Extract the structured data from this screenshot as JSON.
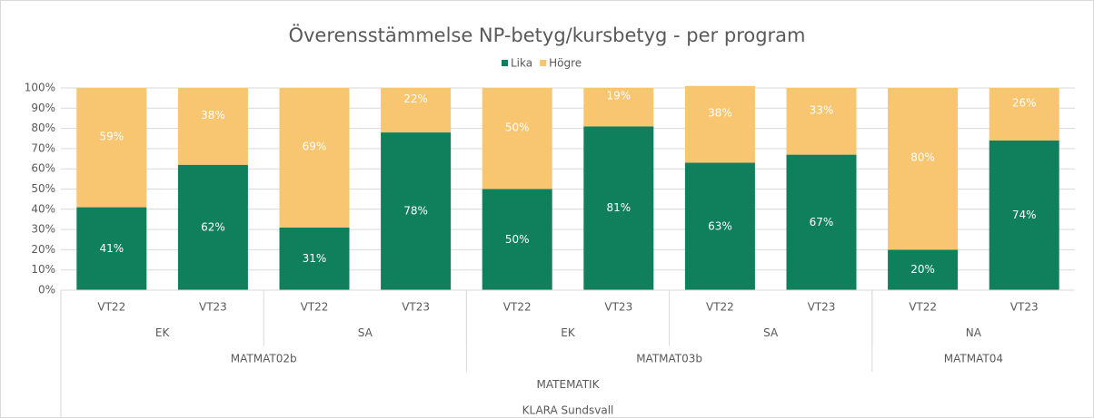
{
  "chart_data": {
    "type": "stacked_bar",
    "title": "Överensstämmelse NP-betyg/kursbetyg - per program",
    "categories": [
      "VT22",
      "VT23",
      "VT22",
      "VT23",
      "VT22",
      "VT23",
      "VT22",
      "VT23",
      "VT22",
      "VT23"
    ],
    "category_groups": [
      {
        "labels": [
          "EK",
          "SA",
          "EK",
          "SA",
          "NA"
        ],
        "spans": [
          2,
          2,
          2,
          2,
          2
        ]
      },
      {
        "labels": [
          "MATMAT02b",
          "MATMAT03b",
          "MATMAT04"
        ],
        "spans": [
          4,
          4,
          2
        ]
      },
      {
        "labels": [
          "MATEMATIK"
        ],
        "spans": [
          10
        ]
      },
      {
        "labels": [
          "KLARA Sundsvall"
        ],
        "spans": [
          10
        ]
      }
    ],
    "series": [
      {
        "name": "Lika",
        "color": "#0f7f5c",
        "values": [
          41,
          62,
          31,
          78,
          50,
          81,
          63,
          67,
          20,
          74
        ],
        "value_labels": [
          "41%",
          "62%",
          "31%",
          "78%",
          "50%",
          "81%",
          "63%",
          "67%",
          "20%",
          "74%"
        ]
      },
      {
        "name": "Högre",
        "color": "#f8c571",
        "values": [
          59,
          38,
          69,
          22,
          50,
          19,
          38,
          33,
          80,
          26
        ],
        "value_labels": [
          "59%",
          "38%",
          "69%",
          "22%",
          "50%",
          "19%",
          "38%",
          "33%",
          "80%",
          "26%"
        ]
      }
    ],
    "ylim": [
      0,
      100
    ],
    "yticks": [
      {
        "value": 0,
        "label": "0%"
      },
      {
        "value": 10,
        "label": "10%"
      },
      {
        "value": 20,
        "label": "20%"
      },
      {
        "value": 30,
        "label": "30%"
      },
      {
        "value": 40,
        "label": "40%"
      },
      {
        "value": 50,
        "label": "50%"
      },
      {
        "value": 60,
        "label": "60%"
      },
      {
        "value": 70,
        "label": "70%"
      },
      {
        "value": 80,
        "label": "80%"
      },
      {
        "value": 90,
        "label": "90%"
      },
      {
        "value": 100,
        "label": "100%"
      }
    ],
    "grid": true,
    "legend": "top"
  }
}
